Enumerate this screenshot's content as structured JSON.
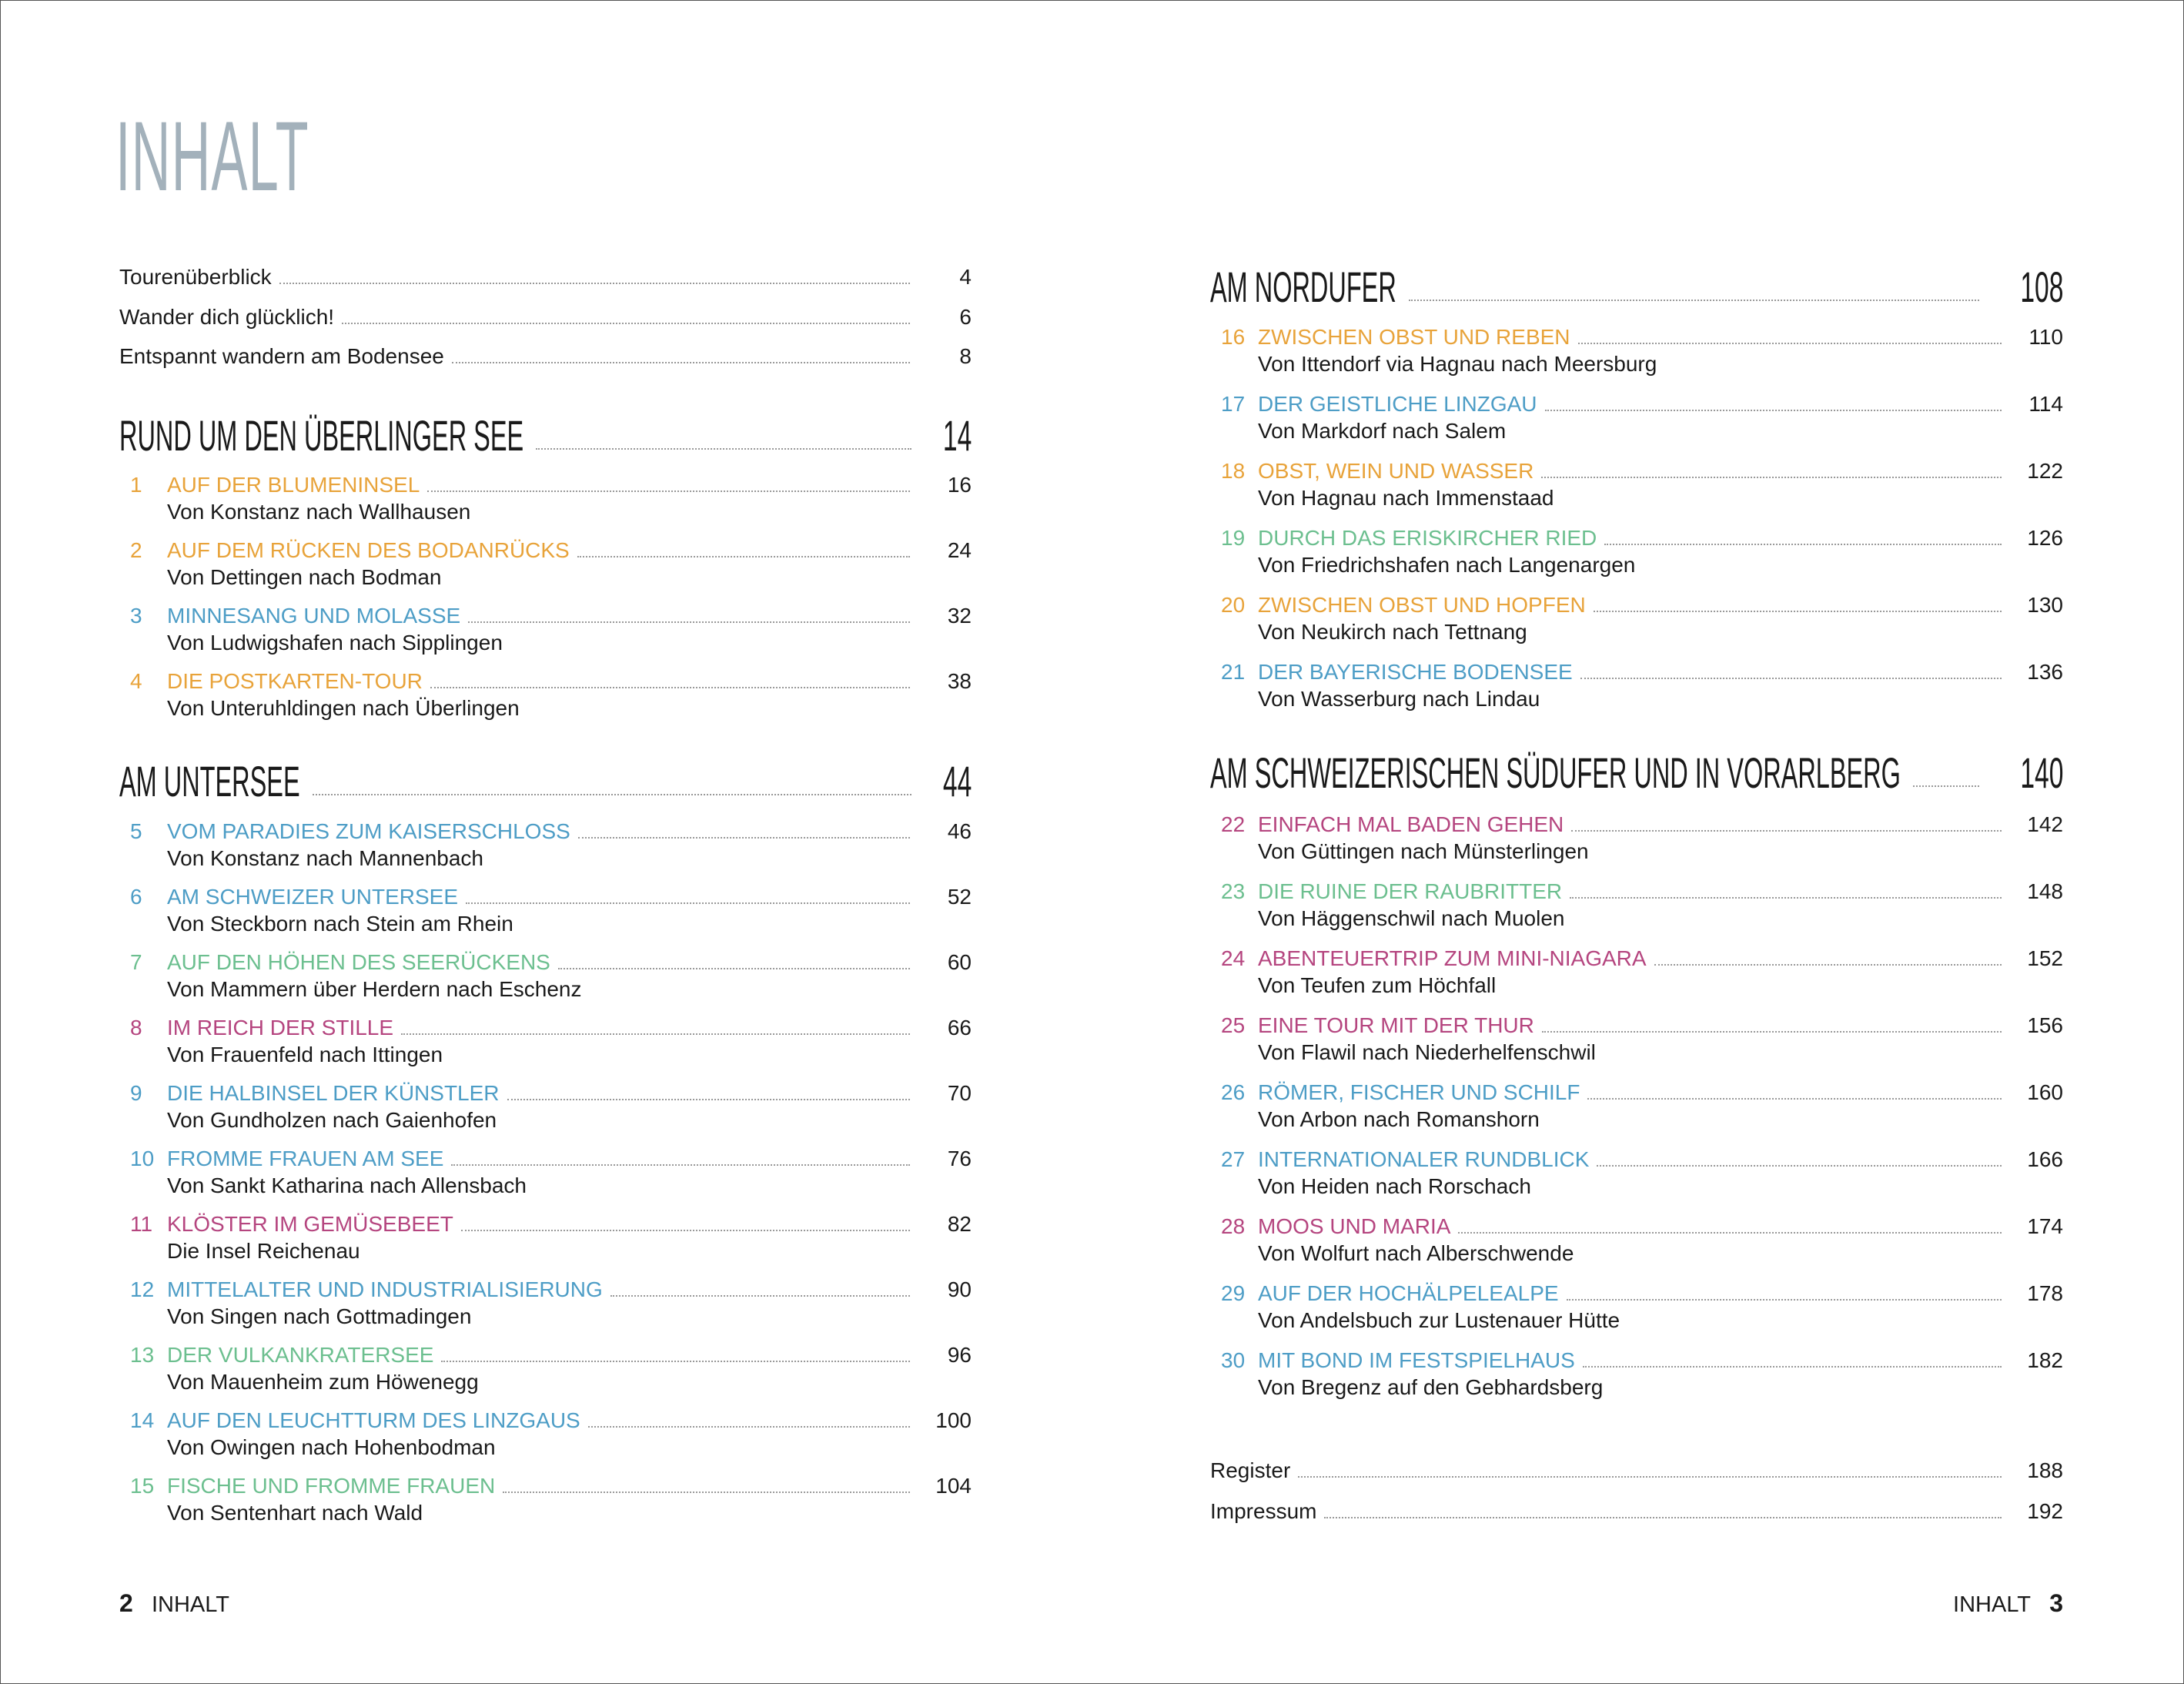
{
  "title": "INHALT",
  "colors": {
    "orange": "#e8a33a",
    "blue": "#4d9dc6",
    "green": "#6cbf8f",
    "magenta": "#b5457f",
    "heading": "#a3b1bb"
  },
  "intro": [
    {
      "label": "Tourenüberblick",
      "page": "4"
    },
    {
      "label": "Wander dich glücklich!",
      "page": "6"
    },
    {
      "label": "Entspannt wandern am Bodensee",
      "page": "8"
    }
  ],
  "sections": [
    {
      "title": "RUND UM DEN ÜBERLINGER SEE",
      "page": "14",
      "entries": [
        {
          "num": "1",
          "title": "AUF DER BLUMENINSEL",
          "sub": "Von Konstanz nach Wallhausen",
          "page": "16",
          "color": "orange"
        },
        {
          "num": "2",
          "title": "AUF DEM RÜCKEN DES BODANRÜCKS",
          "sub": "Von Dettingen nach Bodman",
          "page": "24",
          "color": "orange"
        },
        {
          "num": "3",
          "title": "MINNESANG UND MOLASSE",
          "sub": "Von Ludwigshafen nach Sipplingen",
          "page": "32",
          "color": "blue"
        },
        {
          "num": "4",
          "title": "DIE POSTKARTEN-TOUR",
          "sub": "Von Unteruhldingen nach Überlingen",
          "page": "38",
          "color": "orange"
        }
      ]
    },
    {
      "title": "AM UNTERSEE",
      "page": "44",
      "entries": [
        {
          "num": "5",
          "title": "VOM PARADIES ZUM KAISERSCHLOSS",
          "sub": "Von Konstanz nach Mannenbach",
          "page": "46",
          "color": "blue"
        },
        {
          "num": "6",
          "title": "AM SCHWEIZER UNTERSEE",
          "sub": "Von Steckborn nach Stein am Rhein",
          "page": "52",
          "color": "blue"
        },
        {
          "num": "7",
          "title": "AUF DEN HÖHEN DES SEERÜCKENS",
          "sub": "Von Mammern über Herdern nach Eschenz",
          "page": "60",
          "color": "green"
        },
        {
          "num": "8",
          "title": "IM REICH DER STILLE",
          "sub": "Von Frauenfeld nach Ittingen",
          "page": "66",
          "color": "magenta"
        },
        {
          "num": "9",
          "title": "DIE HALBINSEL DER KÜNSTLER",
          "sub": "Von Gundholzen nach Gaienhofen",
          "page": "70",
          "color": "blue"
        },
        {
          "num": "10",
          "title": "FROMME FRAUEN AM SEE",
          "sub": "Von Sankt Katharina nach Allensbach",
          "page": "76",
          "color": "blue"
        },
        {
          "num": "11",
          "title": "KLÖSTER IM GEMÜSEBEET",
          "sub": "Die Insel Reichenau",
          "page": "82",
          "color": "magenta"
        },
        {
          "num": "12",
          "title": "MITTELALTER UND INDUSTRIALISIERUNG",
          "sub": "Von Singen nach Gottmadingen",
          "page": "90",
          "color": "blue"
        },
        {
          "num": "13",
          "title": "DER VULKANKRATERSEE",
          "sub": "Von Mauenheim zum Höwenegg",
          "page": "96",
          "color": "green"
        },
        {
          "num": "14",
          "title": "AUF DEN LEUCHTTURM DES LINZGAUS",
          "sub": "Von Owingen nach Hohenbodman",
          "page": "100",
          "color": "blue"
        },
        {
          "num": "15",
          "title": "FISCHE UND FROMME FRAUEN",
          "sub": "Von Sentenhart nach Wald",
          "page": "104",
          "color": "green"
        }
      ]
    },
    {
      "title": "AM NORDUFER",
      "page": "108",
      "entries": [
        {
          "num": "16",
          "title": "ZWISCHEN OBST UND REBEN",
          "sub": "Von Ittendorf via Hagnau nach Meersburg",
          "page": "110",
          "color": "orange"
        },
        {
          "num": "17",
          "title": "DER GEISTLICHE LINZGAU",
          "sub": "Von Markdorf nach Salem",
          "page": "114",
          "color": "blue"
        },
        {
          "num": "18",
          "title": "OBST, WEIN UND WASSER",
          "sub": "Von Hagnau nach Immenstaad",
          "page": "122",
          "color": "orange"
        },
        {
          "num": "19",
          "title": "DURCH DAS ERISKIRCHER RIED",
          "sub": "Von Friedrichshafen nach Langenargen",
          "page": "126",
          "color": "green"
        },
        {
          "num": "20",
          "title": "ZWISCHEN OBST UND HOPFEN",
          "sub": "Von Neukirch nach Tettnang",
          "page": "130",
          "color": "orange"
        },
        {
          "num": "21",
          "title": "DER BAYERISCHE BODENSEE",
          "sub": "Von Wasserburg nach Lindau",
          "page": "136",
          "color": "blue"
        }
      ]
    },
    {
      "title": "AM SCHWEIZERISCHEN SÜDUFER UND IN VORARLBERG",
      "page": "140",
      "entries": [
        {
          "num": "22",
          "title": "EINFACH MAL BADEN GEHEN",
          "sub": "Von Güttingen nach Münsterlingen",
          "page": "142",
          "color": "magenta"
        },
        {
          "num": "23",
          "title": "DIE RUINE DER RAUBRITTER",
          "sub": "Von Häggenschwil nach Muolen",
          "page": "148",
          "color": "green"
        },
        {
          "num": "24",
          "title": "ABENTEUERTRIP ZUM MINI-NIAGARA",
          "sub": "Von Teufen zum Höchfall",
          "page": "152",
          "color": "magenta"
        },
        {
          "num": "25",
          "title": "EINE TOUR MIT DER THUR",
          "sub": "Von Flawil nach Niederhelfenschwil",
          "page": "156",
          "color": "magenta"
        },
        {
          "num": "26",
          "title": "RÖMER, FISCHER UND SCHILF",
          "sub": "Von Arbon nach Romanshorn",
          "page": "160",
          "color": "blue"
        },
        {
          "num": "27",
          "title": "INTERNATIONALER RUNDBLICK",
          "sub": "Von Heiden nach Rorschach",
          "page": "166",
          "color": "blue"
        },
        {
          "num": "28",
          "title": "MOOS UND MARIA",
          "sub": "Von Wolfurt nach Alberschwende",
          "page": "174",
          "color": "magenta"
        },
        {
          "num": "29",
          "title": "AUF DER HOCHÄLPELEALPE",
          "sub": "Von Andelsbuch zur Lustenauer Hütte",
          "page": "178",
          "color": "blue"
        },
        {
          "num": "30",
          "title": "MIT BOND IM FESTSPIELHAUS",
          "sub": "Von Bregenz auf den Gebhardsberg",
          "page": "182",
          "color": "blue"
        }
      ]
    }
  ],
  "outro": [
    {
      "label": "Register",
      "page": "188"
    },
    {
      "label": "Impressum",
      "page": "192"
    }
  ],
  "footer": {
    "left_page": "2",
    "left_label": "INHALT",
    "right_label": "INHALT",
    "right_page": "3"
  }
}
